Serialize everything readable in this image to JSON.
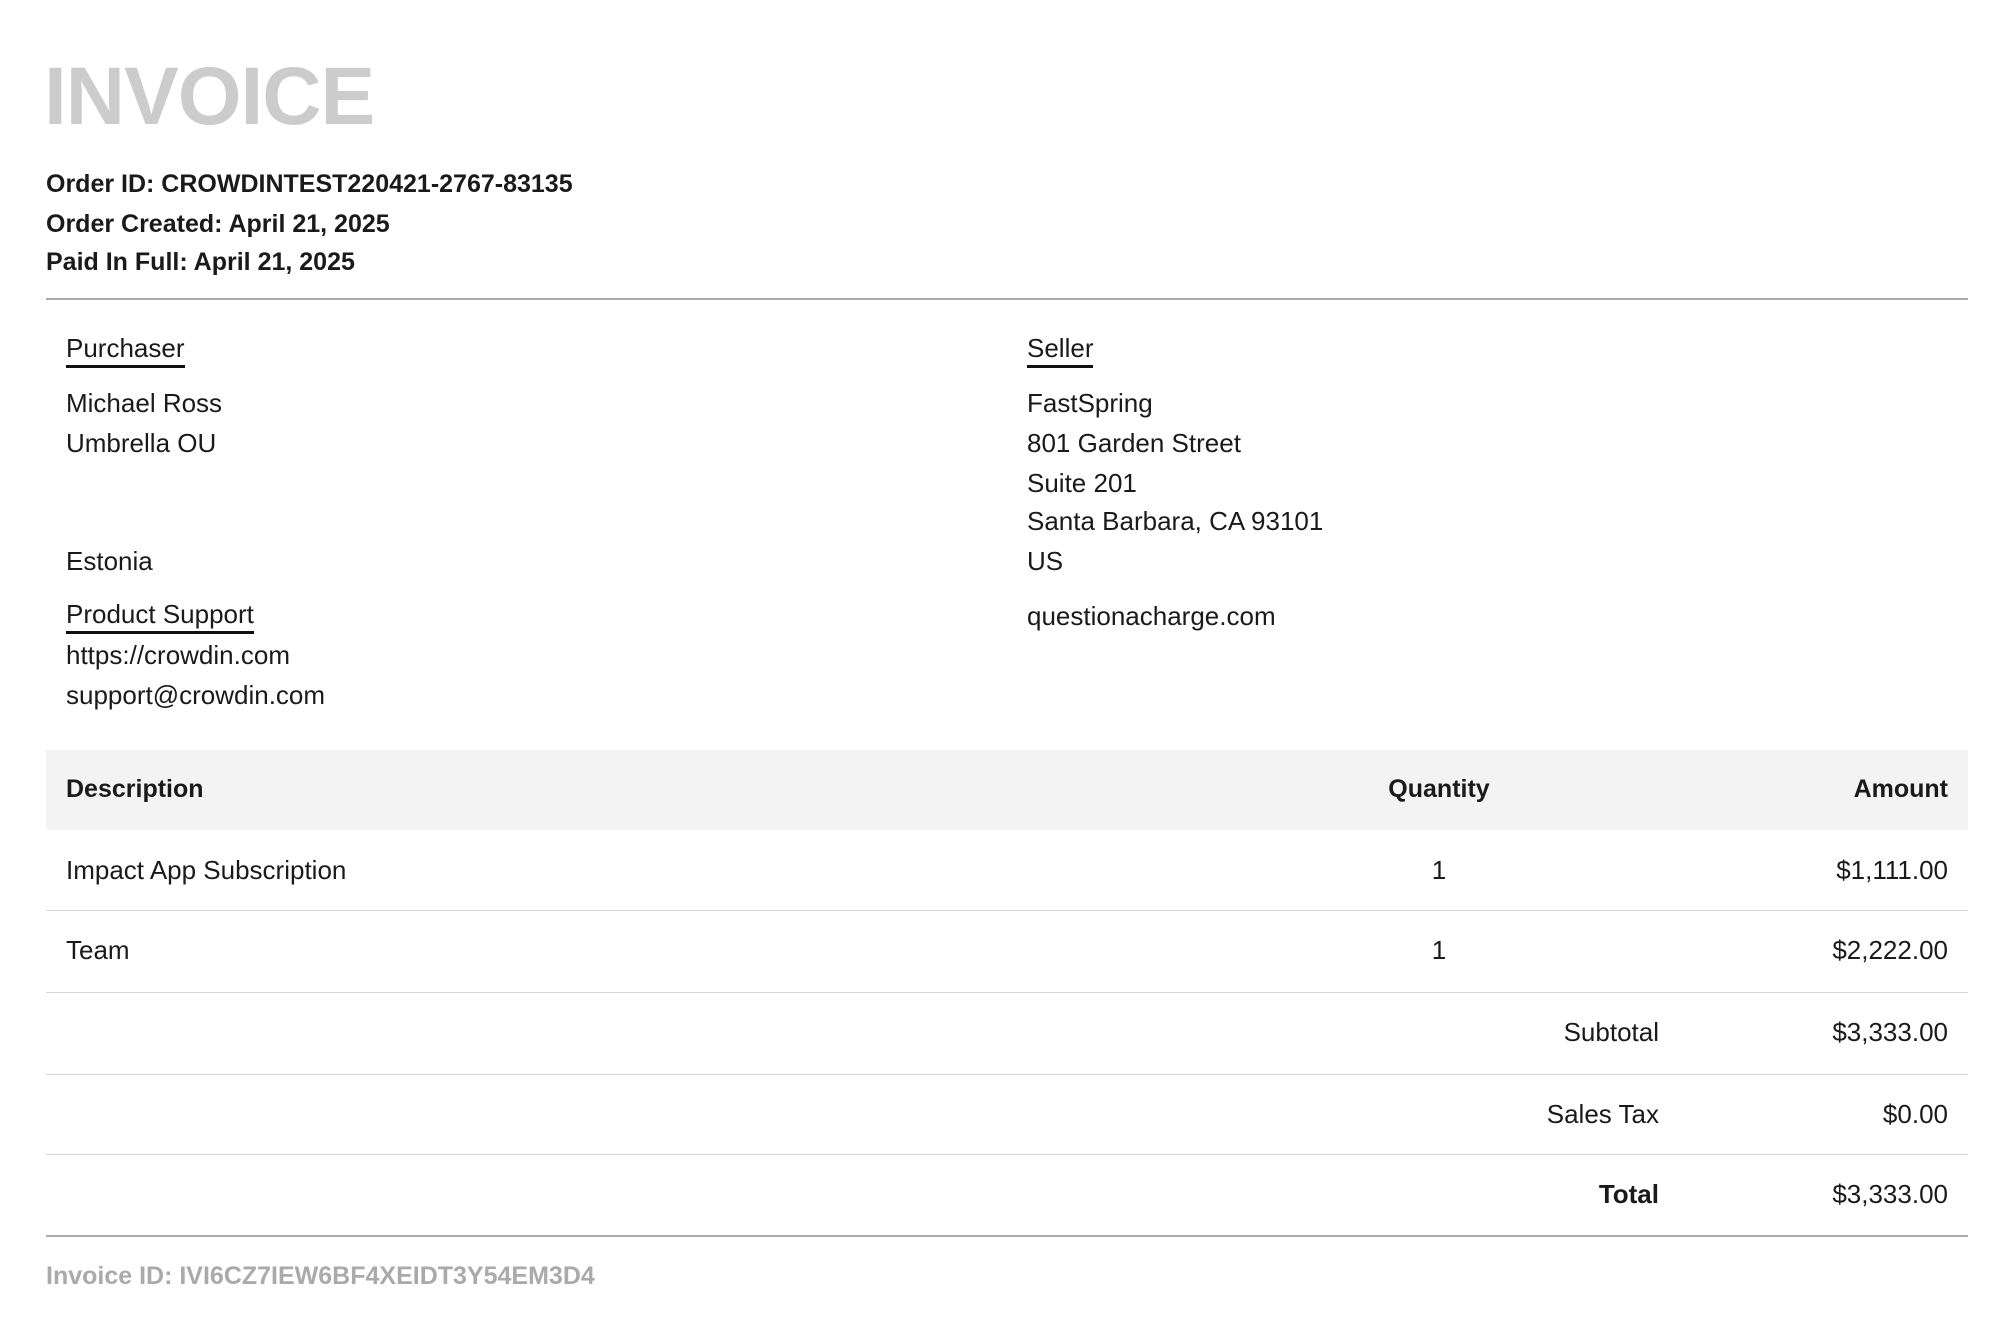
{
  "header": {
    "title": "INVOICE",
    "order_id": "Order ID: CROWDINTEST220421-2767-83135",
    "order_created": "Order Created: April 21, 2025",
    "paid_in_full": "Paid In Full: April 21, 2025"
  },
  "purchaser": {
    "label": "Purchaser",
    "name": "Michael Ross",
    "company": "Umbrella OU",
    "country": "Estonia",
    "support_label": "Product Support",
    "support_url": "https://crowdin.com",
    "support_email": "support@crowdin.com"
  },
  "seller": {
    "label": "Seller",
    "name": "FastSpring",
    "address1": "801 Garden Street",
    "address2": "Suite 201",
    "city": "Santa Barbara, CA 93101",
    "country": "US",
    "website": "questionacharge.com"
  },
  "table": {
    "headers": {
      "description": "Description",
      "quantity": "Quantity",
      "amount": "Amount"
    },
    "rows": [
      {
        "description": "Impact App Subscription",
        "quantity": "1",
        "amount": "$1,111.00"
      },
      {
        "description": "Team",
        "quantity": "1",
        "amount": "$2,222.00"
      }
    ],
    "subtotal_label": "Subtotal",
    "subtotal": "$3,333.00",
    "tax_label": "Sales Tax",
    "tax": "$0.00",
    "total_label": "Total",
    "total": "$3,333.00"
  },
  "footer": {
    "invoice_id": "Invoice ID: IVI6CZ7IEW6BF4XEIDT3Y54EM3D4"
  }
}
